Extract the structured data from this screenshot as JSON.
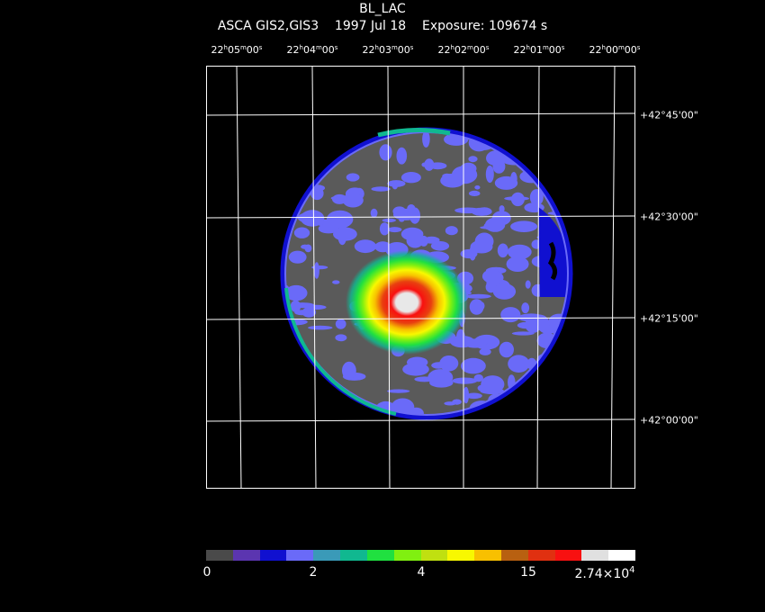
{
  "header": {
    "object": "BL_LAC",
    "instrument": "ASCA GIS2,GIS3",
    "date": "1997 Jul 18",
    "exposure": "Exposure: 109674 s"
  },
  "ra_labels": [
    {
      "h": "22",
      "m": "05",
      "s": "00"
    },
    {
      "h": "22",
      "m": "04",
      "s": "00"
    },
    {
      "h": "22",
      "m": "03",
      "s": "00"
    },
    {
      "h": "22",
      "m": "02",
      "s": "00"
    },
    {
      "h": "22",
      "m": "01",
      "s": "00"
    },
    {
      "h": "22",
      "m": "00",
      "s": "00"
    }
  ],
  "dec_labels": [
    "+42°45'00\"",
    "+42°30'00\"",
    "+42°15'00\"",
    "+42°00'00\""
  ],
  "colorbar": {
    "ticks": [
      "0",
      "2",
      "4",
      "15",
      "2.74×10"
    ],
    "last_exponent": "4",
    "colors": [
      "#4a4a4a",
      "#5b35b0",
      "#1010d0",
      "#6a6af8",
      "#3a9ab8",
      "#10b890",
      "#20e040",
      "#80f010",
      "#c0e010",
      "#f8f800",
      "#f8c000",
      "#b86010",
      "#e03010",
      "#f81010",
      "#e0e0e0",
      "#ffffff"
    ]
  }
}
